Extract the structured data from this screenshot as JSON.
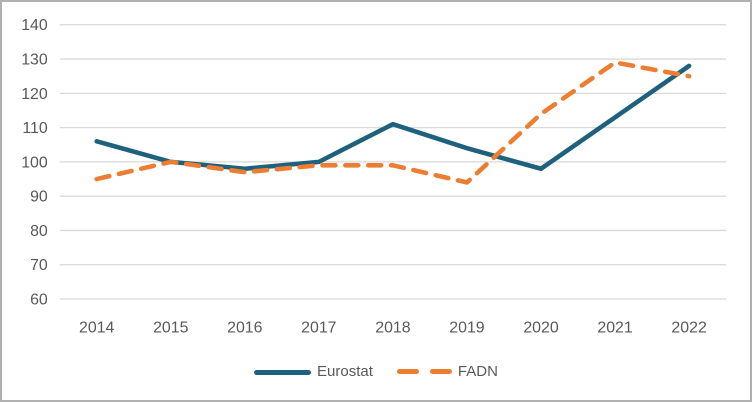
{
  "chart_data": {
    "type": "line",
    "categories": [
      "2014",
      "2015",
      "2016",
      "2017",
      "2018",
      "2019",
      "2020",
      "2021",
      "2022"
    ],
    "series": [
      {
        "name": "Eurostat",
        "style": "solid",
        "color": "#1e617c",
        "values": [
          106,
          100,
          98,
          100,
          111,
          104,
          98,
          113,
          128
        ]
      },
      {
        "name": "FADN",
        "style": "dashed",
        "color": "#ed7d31",
        "values": [
          95,
          100,
          97,
          99,
          99,
          94,
          114,
          129,
          125
        ]
      }
    ],
    "ylim": [
      60,
      140
    ],
    "yticks": [
      60,
      70,
      80,
      90,
      100,
      110,
      120,
      130,
      140
    ],
    "grid": true,
    "legend_position": "bottom"
  },
  "colors": {
    "background": "#ffffff",
    "border": "#b1b1b1",
    "gridline": "#d9d9d9",
    "tick_label": "#595959",
    "legend_label": "#595959"
  }
}
